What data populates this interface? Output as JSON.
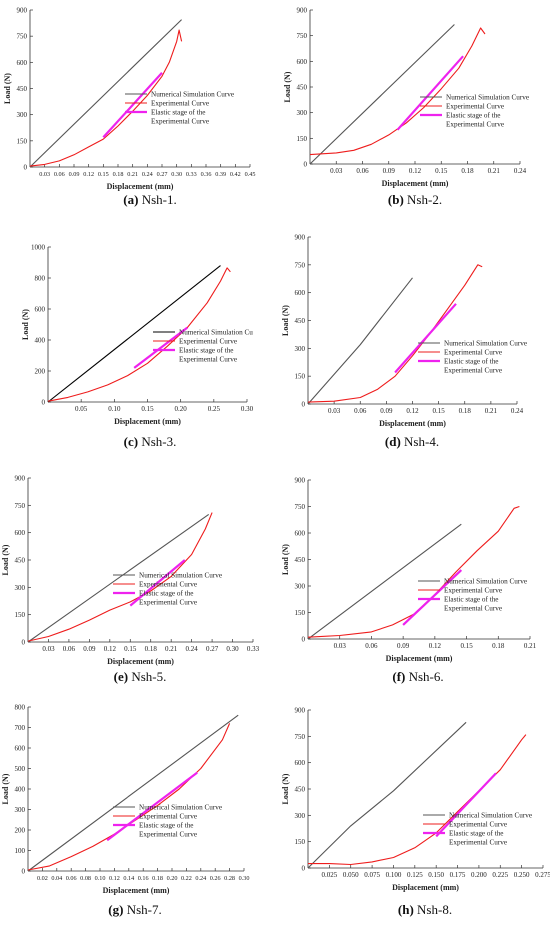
{
  "panels": [
    {
      "letter": "(a)",
      "name": "Nsh-1.",
      "xlabel": "Displacement (mm)",
      "ylabel": "Load (N)",
      "xticks": [
        0.03,
        0.06,
        0.09,
        0.12,
        0.15,
        0.18,
        0.21,
        0.24,
        0.27,
        0.3,
        0.33,
        0.36,
        0.39,
        0.42,
        0.45
      ],
      "xtick_labels": [
        "0.03",
        "0.06",
        "0.09",
        "0.12",
        "0.15",
        "0.18",
        "0.21",
        "0.24",
        "0.27",
        "0.30",
        "0.33",
        "0.36",
        "0.39",
        "0.42",
        "0.45"
      ],
      "yticks": [
        0,
        150,
        300,
        450,
        600,
        750,
        900
      ],
      "legend": [
        "Numerical Simulation Curve",
        "Experimental Curve",
        "Elastic stage of  the",
        "Experimental Curve"
      ]
    },
    {
      "letter": "(b)",
      "name": "Nsh-2.",
      "xlabel": "Displacement (mm)",
      "ylabel": "Load (N)",
      "xticks": [
        0.03,
        0.06,
        0.09,
        0.12,
        0.15,
        0.18,
        0.21,
        0.24
      ],
      "xtick_labels": [
        "0.03",
        "0.06",
        "0.09",
        "0.12",
        "0.15",
        "0.18",
        "0.21",
        "0.24"
      ],
      "yticks": [
        0,
        150,
        300,
        450,
        600,
        750,
        900
      ],
      "legend": [
        "Numerical Simulation Curve",
        "Experimental Curve",
        "Elastic stage of  the",
        "Experimental Curve"
      ]
    },
    {
      "letter": "(c)",
      "name": "Nsh-3.",
      "xlabel": "Displacement (mm)",
      "ylabel": "Load (N)",
      "xticks": [
        0.05,
        0.1,
        0.15,
        0.2,
        0.25,
        0.3
      ],
      "xtick_labels": [
        "0.05",
        "0.10",
        "0.15",
        "0.20",
        "0.25",
        "0.30"
      ],
      "yticks": [
        0,
        200,
        400,
        600,
        800,
        1000
      ],
      "legend": [
        "Numerical Simulation Cu",
        "Experimental Curve",
        "Elastic stage of  the",
        "Experimental Curve"
      ]
    },
    {
      "letter": "(d)",
      "name": "Nsh-4.",
      "xlabel": "Displacement (mm)",
      "ylabel": "Load (N)",
      "xticks": [
        0.03,
        0.06,
        0.09,
        0.12,
        0.15,
        0.18,
        0.21,
        0.24
      ],
      "xtick_labels": [
        "0.03",
        "0.06",
        "0.09",
        "0.12",
        "0.15",
        "0.18",
        "0.21",
        "0.24"
      ],
      "yticks": [
        0,
        150,
        300,
        450,
        600,
        750,
        900
      ],
      "legend": [
        "Numerical Simulation Curve",
        "Experimental Curve",
        "Elastic stage of  the",
        "Experimental Curve"
      ]
    },
    {
      "letter": "(e)",
      "name": "Nsh-5.",
      "xlabel": "Displacement (mm)",
      "ylabel": "Load (N)",
      "xticks": [
        0.03,
        0.06,
        0.09,
        0.12,
        0.15,
        0.18,
        0.21,
        0.24,
        0.27,
        0.3,
        0.33
      ],
      "xtick_labels": [
        "0.03",
        "0.06",
        "0.09",
        "0.12",
        "0.15",
        "0.18",
        "0.21",
        "0.24",
        "0.27",
        "0.30",
        "0.33"
      ],
      "yticks": [
        0,
        150,
        300,
        450,
        600,
        750,
        900
      ],
      "legend": [
        "Numerical Simulation Curve",
        "Experimental Curve",
        "Elastic stage of  the",
        "Experimental Curve"
      ]
    },
    {
      "letter": "(f)",
      "name": "Nsh-6.",
      "xlabel": "Displacement (mm)",
      "ylabel": "Load (N)",
      "xticks": [
        0.03,
        0.06,
        0.09,
        0.12,
        0.15,
        0.18,
        0.21
      ],
      "xtick_labels": [
        "0.03",
        "0.06",
        "0.09",
        "0.12",
        "0.15",
        "0.18",
        "0.21"
      ],
      "yticks": [
        0,
        150,
        300,
        450,
        600,
        750,
        900
      ],
      "legend": [
        "Numerical Simulation Curve",
        "Experimental Curve",
        "Elastic stage of  the",
        "Experimental Curve"
      ]
    },
    {
      "letter": "(g)",
      "name": "Nsh-7.",
      "xlabel": "Displacement (mm)",
      "ylabel": "Load (N)",
      "xticks": [
        0.02,
        0.04,
        0.06,
        0.08,
        0.1,
        0.12,
        0.14,
        0.16,
        0.18,
        0.2,
        0.22,
        0.24,
        0.26,
        0.28,
        0.3
      ],
      "xtick_labels": [
        "0.02",
        "0.04",
        "0.06",
        "0.08",
        "0.10",
        "0.12",
        "0.14",
        "0.16",
        "0.18",
        "0.20",
        "0.22",
        "0.24",
        "0.26",
        "0.28",
        "0.30"
      ],
      "yticks": [
        0,
        100,
        200,
        300,
        400,
        500,
        600,
        700,
        800
      ],
      "legend": [
        "Numerical Simulation Curve",
        "Experimental Curve",
        "Elastic stage of the",
        "Experimental Curve"
      ]
    },
    {
      "letter": "(h)",
      "name": "Nsh-8.",
      "xlabel": "Displacement (mm)",
      "ylabel": "Load (N)",
      "xticks": [
        0.025,
        0.05,
        0.075,
        0.1,
        0.125,
        0.15,
        0.175,
        0.2,
        0.225,
        0.25,
        0.275
      ],
      "xtick_labels": [
        "0.025",
        "0.050",
        "0.075",
        "0.100",
        "0.125",
        "0.150",
        "0.175",
        "0.200",
        "0.225",
        "0.250",
        "0.275"
      ],
      "yticks": [
        0,
        150,
        300,
        450,
        600,
        750,
        900
      ],
      "legend": [
        "Numerical Simulation Curve",
        "Experimental Curve",
        "Elastic stage of  the",
        "Experimental Curve"
      ]
    }
  ],
  "colors": {
    "numerical": "#555555",
    "numerical_c": "#000000",
    "experimental": "#ee1c1c",
    "elastic": "#ee22ee"
  },
  "chart_data": [
    {
      "type": "line",
      "xlabel": "Displacement (mm)",
      "ylabel": "Load (N)",
      "xlim": [
        0.0,
        0.45
      ],
      "ylim": [
        0,
        900
      ],
      "series": [
        {
          "name": "Numerical Simulation Curve",
          "x": [
            0.0,
            0.31
          ],
          "y": [
            0,
            845
          ]
        },
        {
          "name": "Experimental Curve",
          "x": [
            0.0,
            0.03,
            0.06,
            0.09,
            0.12,
            0.15,
            0.18,
            0.21,
            0.24,
            0.27,
            0.285,
            0.3,
            0.305,
            0.31
          ],
          "y": [
            5,
            15,
            35,
            70,
            115,
            160,
            235,
            320,
            410,
            520,
            600,
            720,
            785,
            720
          ]
        },
        {
          "name": "Elastic stage of  the Experimental Curve",
          "x": [
            0.15,
            0.27
          ],
          "y": [
            170,
            540
          ]
        }
      ]
    },
    {
      "type": "line",
      "xlabel": "Displacement (mm)",
      "ylabel": "Load (N)",
      "xlim": [
        0.0,
        0.24
      ],
      "ylim": [
        0,
        900
      ],
      "series": [
        {
          "name": "Numerical Simulation Curve",
          "x": [
            0.0,
            0.165
          ],
          "y": [
            0,
            815
          ]
        },
        {
          "name": "Experimental Curve",
          "x": [
            0.0,
            0.03,
            0.05,
            0.07,
            0.09,
            0.11,
            0.13,
            0.15,
            0.17,
            0.185,
            0.195,
            0.2
          ],
          "y": [
            55,
            65,
            80,
            115,
            170,
            240,
            330,
            440,
            560,
            690,
            795,
            760
          ]
        },
        {
          "name": "Elastic stage of  the Experimental Curve",
          "x": [
            0.1,
            0.175
          ],
          "y": [
            200,
            630
          ]
        }
      ]
    },
    {
      "type": "line",
      "xlabel": "Displacement (mm)",
      "ylabel": "Load (N)",
      "xlim": [
        0.0,
        0.3
      ],
      "ylim": [
        0,
        1000
      ],
      "series": [
        {
          "name": "Numerical Simulation Cu",
          "x": [
            0.0,
            0.26
          ],
          "y": [
            0,
            880
          ]
        },
        {
          "name": "Experimental Curve",
          "x": [
            0.0,
            0.03,
            0.06,
            0.09,
            0.12,
            0.15,
            0.18,
            0.21,
            0.24,
            0.26,
            0.27,
            0.275
          ],
          "y": [
            5,
            30,
            65,
            110,
            170,
            250,
            360,
            480,
            640,
            780,
            865,
            840
          ]
        },
        {
          "name": "Elastic stage of  the Experimental Curve",
          "x": [
            0.13,
            0.21
          ],
          "y": [
            220,
            480
          ]
        }
      ]
    },
    {
      "type": "line",
      "xlabel": "Displacement (mm)",
      "ylabel": "Load (N)",
      "xlim": [
        0.0,
        0.24
      ],
      "ylim": [
        0,
        900
      ],
      "series": [
        {
          "name": "Numerical Simulation Curve",
          "x": [
            0.0,
            0.06,
            0.12
          ],
          "y": [
            0,
            320,
            680
          ]
        },
        {
          "name": "Experimental Curve",
          "x": [
            0.0,
            0.03,
            0.06,
            0.08,
            0.1,
            0.12,
            0.14,
            0.16,
            0.18,
            0.195,
            0.2
          ],
          "y": [
            10,
            15,
            35,
            80,
            150,
            260,
            380,
            510,
            640,
            750,
            740
          ]
        },
        {
          "name": "Elastic stage of  the Experimental Curve",
          "x": [
            0.1,
            0.17
          ],
          "y": [
            170,
            540
          ]
        }
      ]
    },
    {
      "type": "line",
      "xlabel": "Displacement (mm)",
      "ylabel": "Load (N)",
      "xlim": [
        0.0,
        0.33
      ],
      "ylim": [
        0,
        900
      ],
      "series": [
        {
          "name": "Numerical Simulation Curve",
          "x": [
            0.0,
            0.265
          ],
          "y": [
            0,
            700
          ]
        },
        {
          "name": "Experimental Curve",
          "x": [
            0.0,
            0.03,
            0.06,
            0.09,
            0.12,
            0.15,
            0.18,
            0.21,
            0.24,
            0.26,
            0.27
          ],
          "y": [
            5,
            30,
            70,
            120,
            175,
            220,
            280,
            360,
            480,
            620,
            710
          ]
        },
        {
          "name": "Elastic stage of  the Experimental Curve",
          "x": [
            0.15,
            0.23
          ],
          "y": [
            200,
            450
          ]
        }
      ]
    },
    {
      "type": "line",
      "xlabel": "Displacement (mm)",
      "ylabel": "Load (N)",
      "xlim": [
        0.0,
        0.21
      ],
      "ylim": [
        0,
        900
      ],
      "series": [
        {
          "name": "Numerical Simulation Curve",
          "x": [
            0.0,
            0.145
          ],
          "y": [
            0,
            650
          ]
        },
        {
          "name": "Experimental Curve",
          "x": [
            0.0,
            0.03,
            0.06,
            0.08,
            0.1,
            0.12,
            0.14,
            0.16,
            0.18,
            0.195,
            0.2
          ],
          "y": [
            10,
            20,
            40,
            80,
            140,
            250,
            380,
            500,
            610,
            740,
            750
          ]
        },
        {
          "name": "Elastic stage of  the Experimental Curve",
          "x": [
            0.09,
            0.145
          ],
          "y": [
            80,
            390
          ]
        }
      ]
    },
    {
      "type": "line",
      "xlabel": "Displacement (mm)",
      "ylabel": "Load (N)",
      "xlim": [
        0.0,
        0.3
      ],
      "ylim": [
        0,
        800
      ],
      "series": [
        {
          "name": "Numerical Simulation Curve",
          "x": [
            0.0,
            0.292
          ],
          "y": [
            0,
            760
          ]
        },
        {
          "name": "Experimental Curve",
          "x": [
            0.0,
            0.03,
            0.06,
            0.09,
            0.12,
            0.15,
            0.18,
            0.21,
            0.24,
            0.27,
            0.28
          ],
          "y": [
            5,
            25,
            70,
            120,
            180,
            250,
            320,
            400,
            500,
            640,
            720
          ]
        },
        {
          "name": "Elastic stage of the Experimental Curve",
          "x": [
            0.11,
            0.235
          ],
          "y": [
            150,
            480
          ]
        }
      ]
    },
    {
      "type": "line",
      "xlabel": "Displacement (mm)",
      "ylabel": "Load (N)",
      "xlim": [
        0.0,
        0.275
      ],
      "ylim": [
        0,
        900
      ],
      "series": [
        {
          "name": "Numerical Simulation Curve",
          "x": [
            0.0,
            0.05,
            0.1,
            0.185
          ],
          "y": [
            0,
            240,
            440,
            830
          ]
        },
        {
          "name": "Experimental Curve",
          "x": [
            0.0,
            0.025,
            0.05,
            0.075,
            0.1,
            0.125,
            0.15,
            0.175,
            0.2,
            0.225,
            0.25,
            0.255
          ],
          "y": [
            25,
            25,
            20,
            35,
            60,
            115,
            200,
            320,
            440,
            560,
            730,
            760
          ]
        },
        {
          "name": "Elastic stage of  the Experimental Curve",
          "x": [
            0.15,
            0.22
          ],
          "y": [
            180,
            540
          ]
        }
      ]
    }
  ]
}
